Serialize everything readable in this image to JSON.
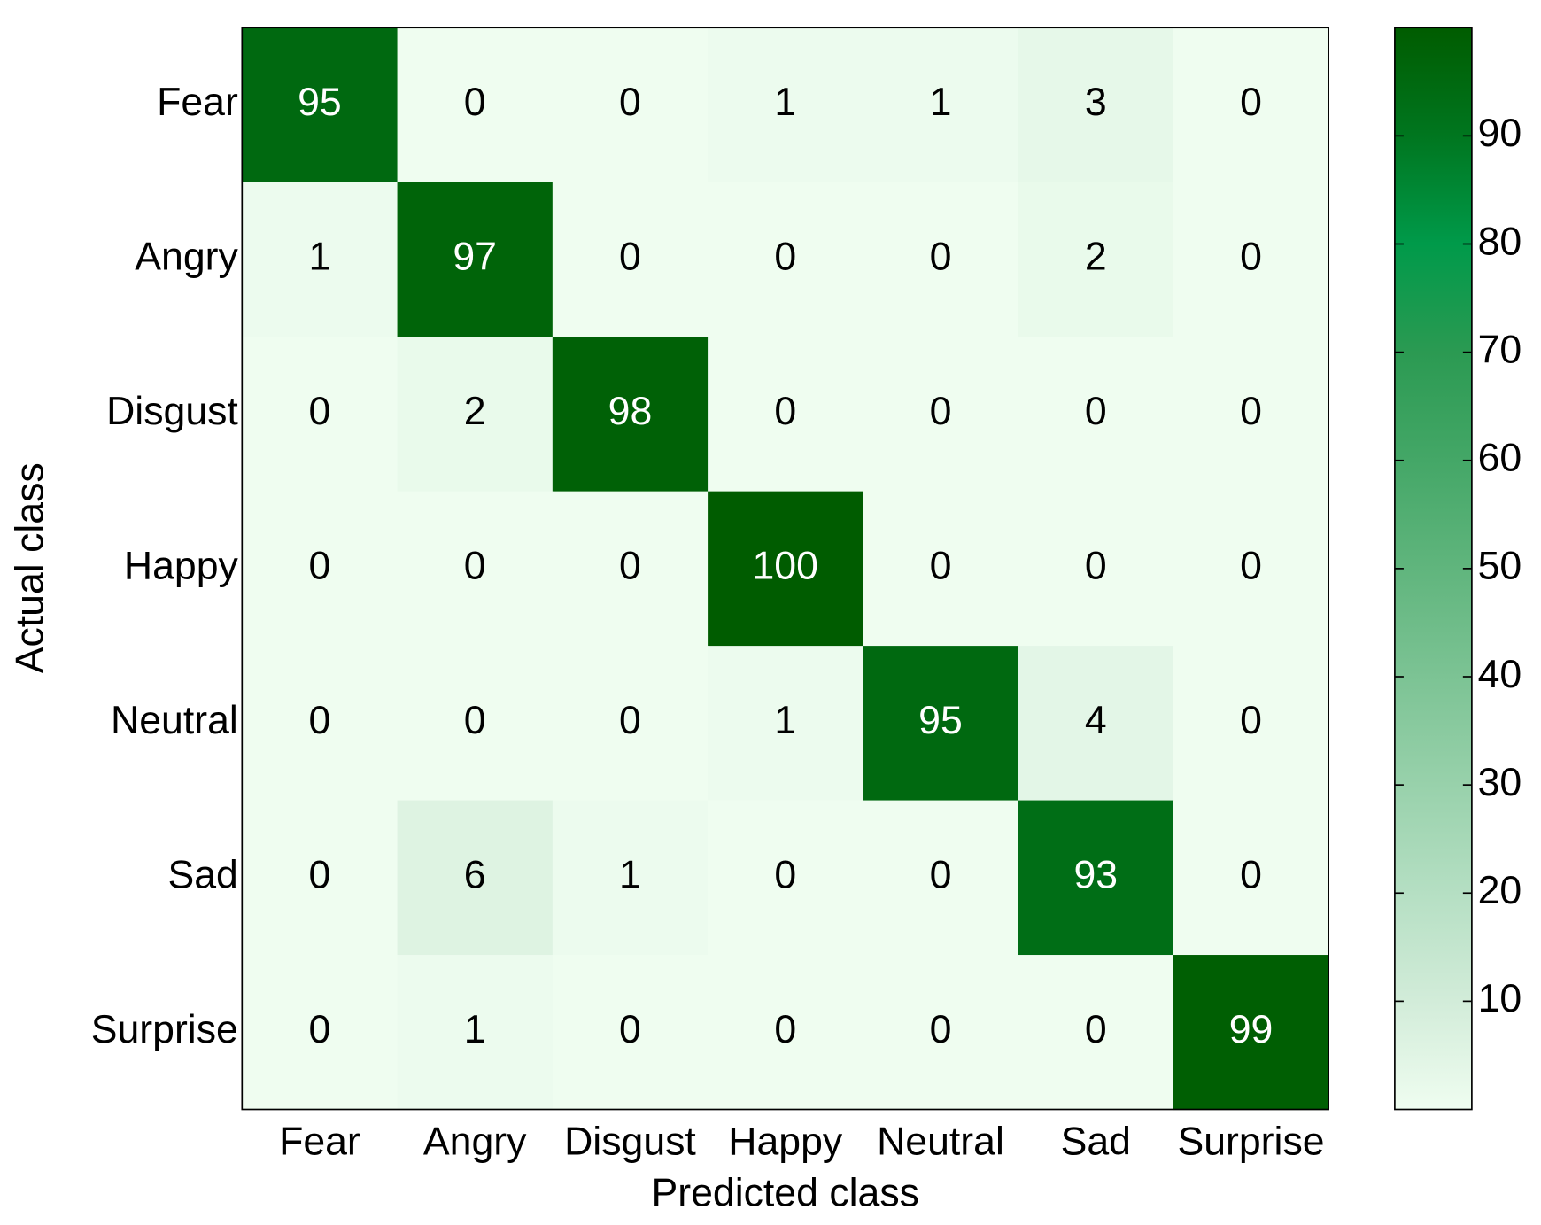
{
  "chart_data": {
    "type": "heatmap",
    "xlabel": "Predicted class",
    "ylabel": "Actual class",
    "x_categories": [
      "Fear",
      "Angry",
      "Disgust",
      "Happy",
      "Neutral",
      "Sad",
      "Surprise"
    ],
    "y_categories": [
      "Fear",
      "Angry",
      "Disgust",
      "Happy",
      "Neutral",
      "Sad",
      "Surprise"
    ],
    "values": [
      [
        95,
        0,
        0,
        1,
        1,
        3,
        0
      ],
      [
        1,
        97,
        0,
        0,
        0,
        2,
        0
      ],
      [
        0,
        2,
        98,
        0,
        0,
        0,
        0
      ],
      [
        0,
        0,
        0,
        100,
        0,
        0,
        0
      ],
      [
        0,
        0,
        0,
        1,
        95,
        4,
        0
      ],
      [
        0,
        6,
        1,
        0,
        0,
        93,
        0
      ],
      [
        0,
        1,
        0,
        0,
        0,
        0,
        99
      ]
    ],
    "clim": [
      0,
      100
    ],
    "colorbar_ticks": [
      10,
      20,
      30,
      40,
      50,
      60,
      70,
      80,
      90
    ],
    "colormap": [
      "#effdf0",
      "#d2ecd9",
      "#b5dfc3",
      "#98d1ab",
      "#7cc394",
      "#60b57d",
      "#44a767",
      "#2b9a52",
      "#009a4a",
      "#00761f",
      "#005c00"
    ]
  }
}
